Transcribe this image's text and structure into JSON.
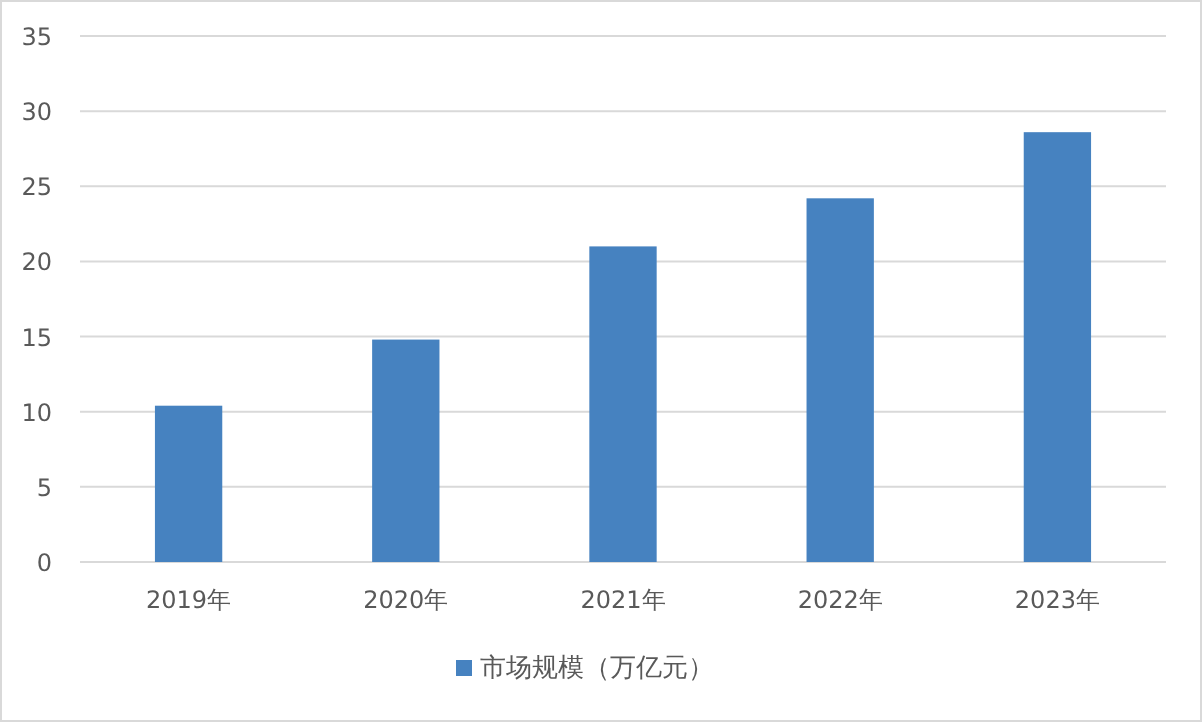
{
  "chart_data": {
    "type": "bar",
    "categories": [
      "2019年",
      "2020年",
      "2021年",
      "2022年",
      "2023年"
    ],
    "series": [
      {
        "name": "市场规模（万亿元）",
        "color": "#4682c0",
        "values": [
          10.4,
          14.8,
          21.0,
          24.2,
          28.6
        ]
      }
    ],
    "ylim": [
      0,
      35
    ],
    "yticks": [
      0,
      5,
      10,
      15,
      20,
      25,
      30,
      35
    ],
    "grid": "y",
    "legend": "bottom"
  }
}
